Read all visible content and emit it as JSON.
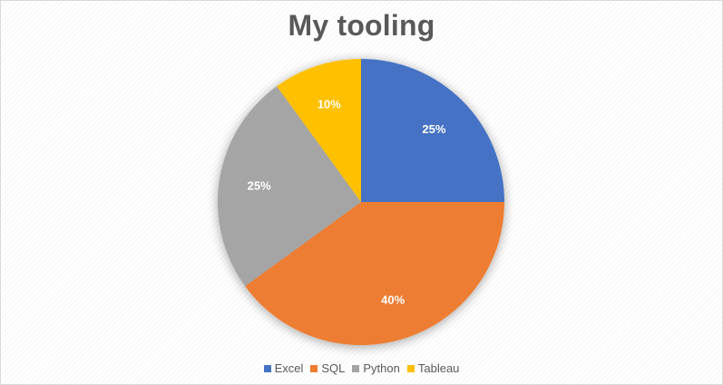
{
  "chart_data": {
    "type": "pie",
    "title": "My tooling",
    "categories": [
      "Excel",
      "SQL",
      "Python",
      "Tableau"
    ],
    "values": [
      25,
      40,
      25,
      10
    ],
    "data_labels": [
      "25%",
      "40%",
      "25%",
      "10%"
    ],
    "colors": [
      "#4472C4",
      "#ED7D31",
      "#A5A5A5",
      "#FFC000"
    ],
    "start_angle": "12 o'clock, clockwise",
    "legend_position": "bottom"
  }
}
